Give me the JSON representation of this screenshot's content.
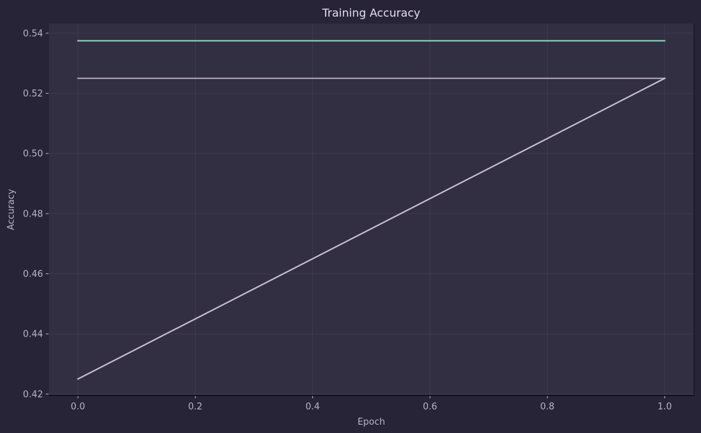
{
  "colors": {
    "figure_bg": "#282438",
    "plot_bg": "#332f43",
    "grid": "#4a4659",
    "text": "#e3deee",
    "label_text": "#b8b3c6",
    "spine": "#0d0b16"
  },
  "chart_data": {
    "type": "line",
    "title": "Training Accuracy",
    "xlabel": "Epoch",
    "ylabel": "Accuracy",
    "xlim": [
      -0.05,
      1.05
    ],
    "ylim": [
      0.4195,
      0.5432
    ],
    "xticks": [
      0.0,
      0.2,
      0.4,
      0.6,
      0.8,
      1.0
    ],
    "xtick_labels": [
      "0.0",
      "0.2",
      "0.4",
      "0.6",
      "0.8",
      "1.0"
    ],
    "yticks": [
      0.42,
      0.44,
      0.46,
      0.48,
      0.5,
      0.52,
      0.54
    ],
    "ytick_labels": [
      "0.42",
      "0.44",
      "0.46",
      "0.48",
      "0.50",
      "0.52",
      "0.54"
    ],
    "grid": true,
    "legend": "none",
    "series": [
      {
        "color": "#8fd3bd",
        "x": [
          0.0,
          1.0
        ],
        "y": [
          0.5375,
          0.5375
        ]
      },
      {
        "color": "#a8a2b4",
        "x": [
          0.0,
          1.0
        ],
        "y": [
          0.525,
          0.525
        ]
      },
      {
        "color": "#c9c2d2",
        "x": [
          0.0,
          1.0
        ],
        "y": [
          0.425,
          0.525
        ]
      }
    ]
  }
}
